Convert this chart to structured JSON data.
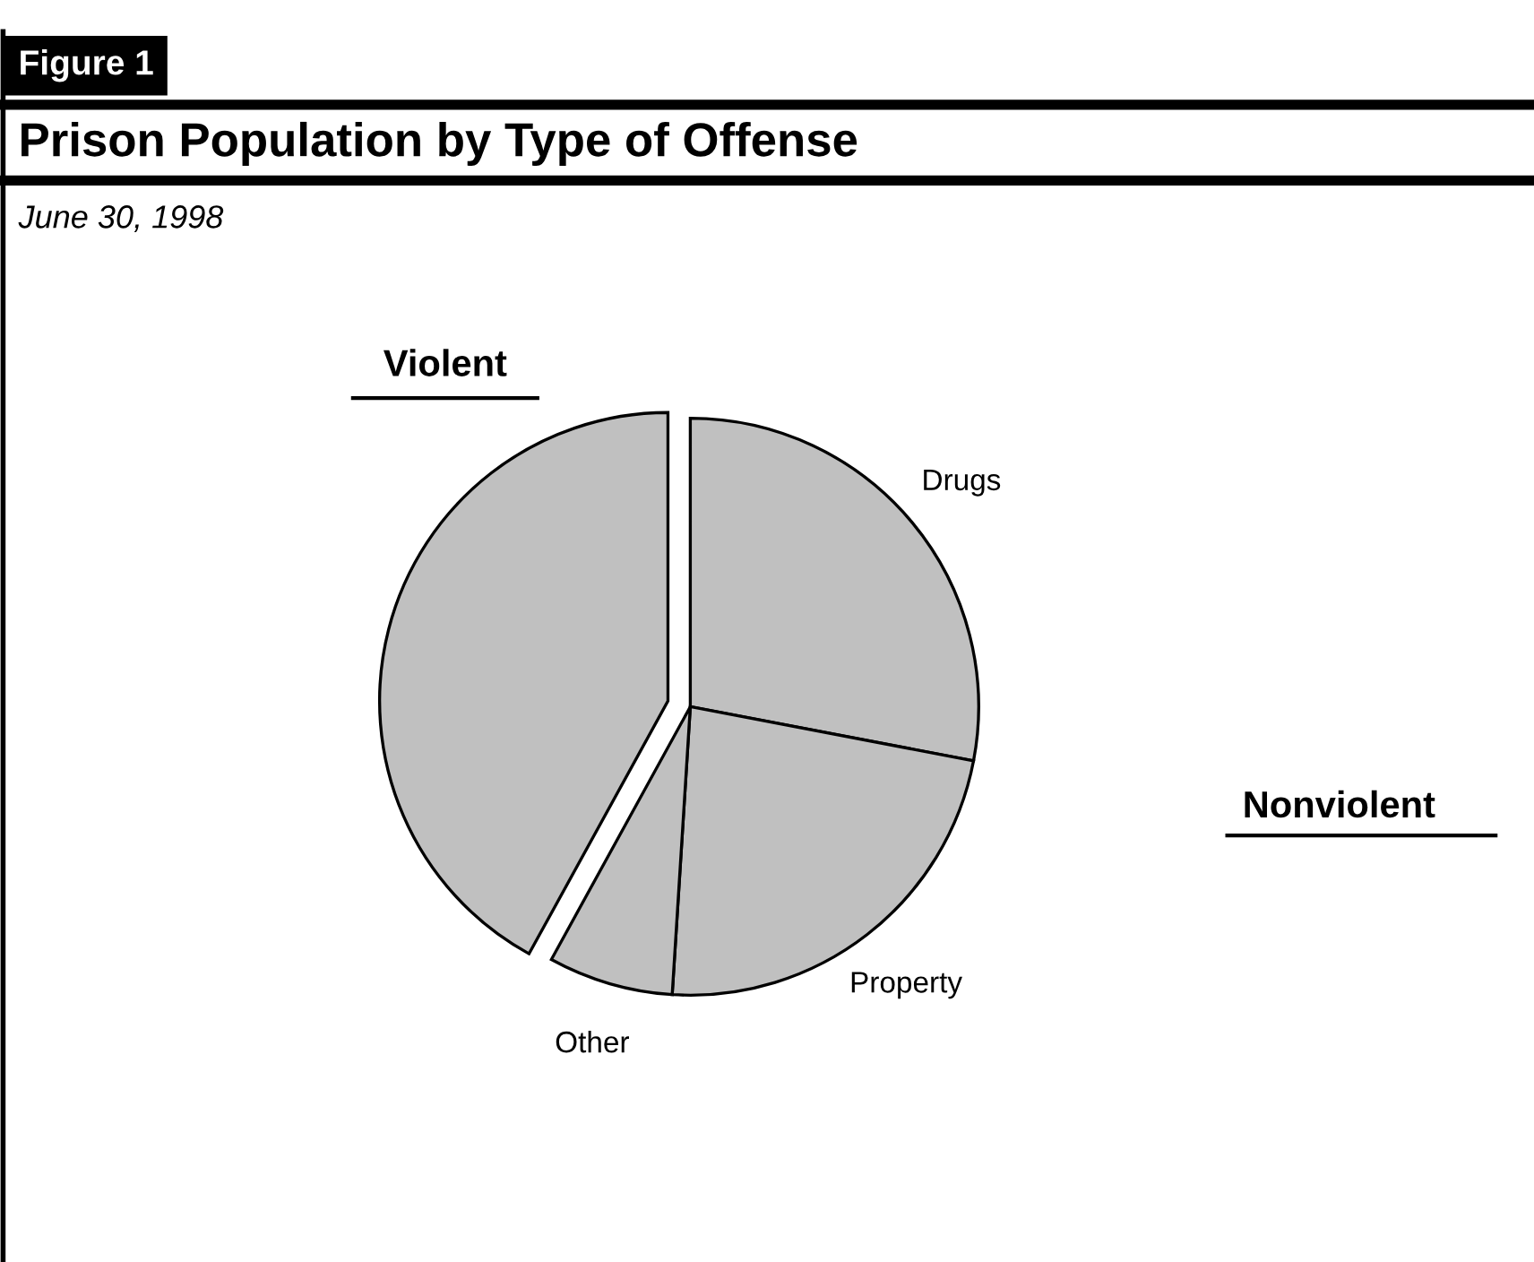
{
  "chart_data": {
    "type": "pie",
    "title": "Prison Population by Type of Offense",
    "subtitle": "June 30, 1998",
    "categories": [
      "Drugs",
      "Property",
      "Other",
      "Violent"
    ],
    "values": [
      28,
      23,
      7,
      42
    ],
    "colors": [
      "#c0c0c0",
      "#c0c0c0",
      "#c0c0c0",
      "#c0c0c0"
    ],
    "annotations": [
      "Figure 1",
      "Nonviolent"
    ]
  }
}
